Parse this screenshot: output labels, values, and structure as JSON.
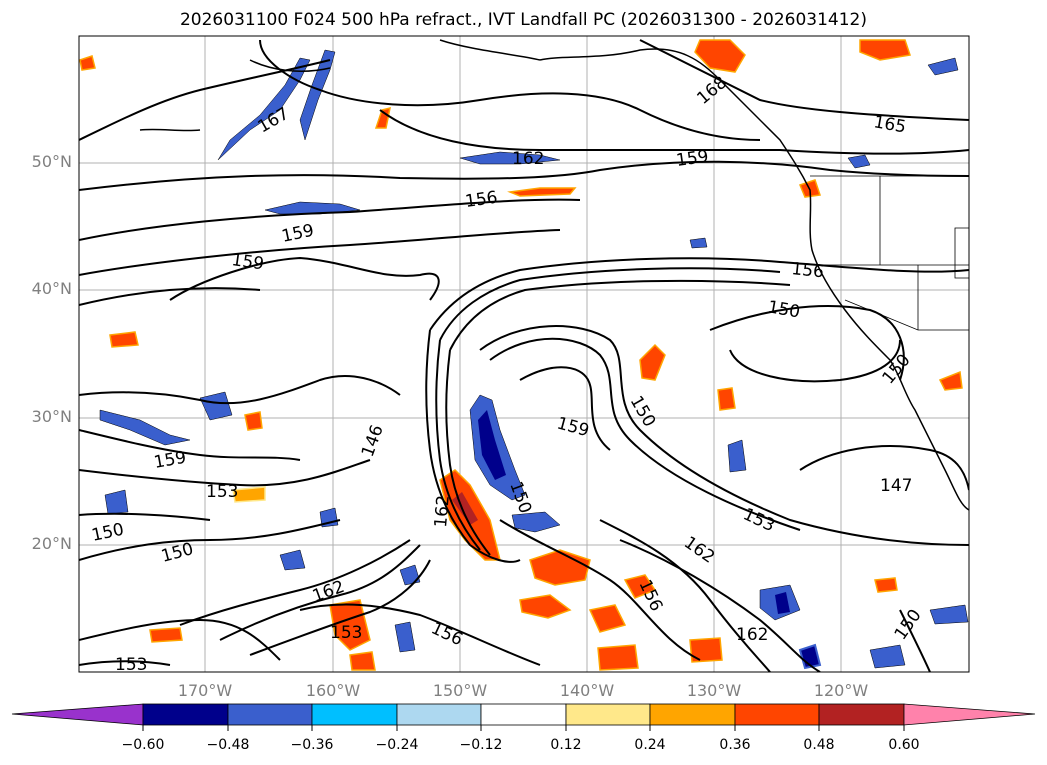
{
  "title": "2026031100 F024 500 hPa refract., IVT Landfall PC (2026031300 - 2026031412)",
  "map": {
    "latitude_labels": [
      "50°N",
      "40°N",
      "30°N",
      "20°N"
    ],
    "longitude_labels": [
      "170°W",
      "160°W",
      "150°W",
      "140°W",
      "130°W",
      "120°W"
    ],
    "contour_labels": [
      "167",
      "162",
      "159",
      "165",
      "168",
      "156",
      "159",
      "159",
      "156",
      "150",
      "150",
      "159",
      "150",
      "147",
      "153",
      "162",
      "156",
      "162",
      "153",
      "162",
      "153",
      "156",
      "150",
      "159",
      "153",
      "150",
      "150",
      "162",
      "150",
      "146"
    ]
  },
  "colorbar": {
    "tick_labels": [
      "−0.60",
      "−0.48",
      "−0.36",
      "−0.24",
      "−0.12",
      "0.12",
      "0.24",
      "0.36",
      "0.48",
      "0.60"
    ],
    "colors": [
      "#9932cc",
      "#00008b",
      "#3a5fcd",
      "#00bfff",
      "#add8f0",
      "#ffffff",
      "#ffe88a",
      "#ffa500",
      "#ff4500",
      "#b22222",
      "#ff82ab"
    ]
  }
}
